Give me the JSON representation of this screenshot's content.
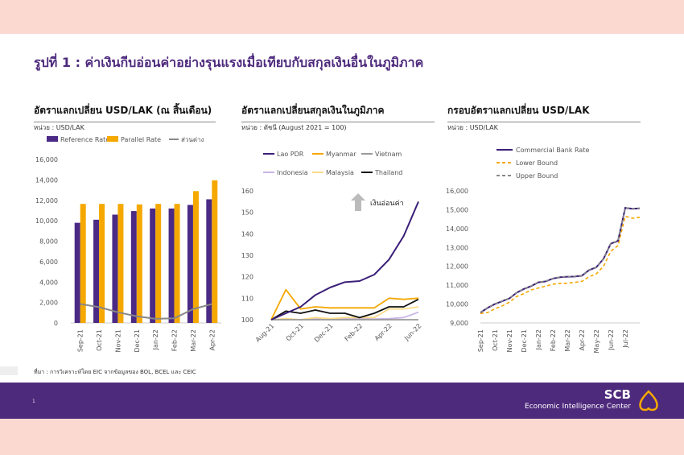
{
  "page": {
    "title": "รูปที่ 1 : ค่าเงินกีบอ่อนค่าอย่างรุนแรงเมื่อเทียบกับสกุลเงินอื่นในภูมิภาค",
    "source": "ที่มา : การวิเคราะห์โดย EIC จากข้อมูลของ BOL, BCEL และ CEIC",
    "page_number": "1",
    "brand": "SCB",
    "brand_sub": "Economic Intelligence Center",
    "annotation": "เงินอ่อนค่า"
  },
  "chart_data": [
    {
      "type": "bar",
      "title": "อัตราแลกเปลี่ยน USD/LAK (ณ สิ้นเดือน)",
      "unit": "หน่วย : USD/LAK",
      "categories": [
        "Sep-21",
        "Oct-21",
        "Nov-21",
        "Dec-21",
        "Jan-22",
        "Feb-22",
        "Mar-22",
        "Apr-22"
      ],
      "ylim": [
        0,
        16000
      ],
      "yticks": [
        "0",
        "2,000",
        "4,000",
        "6,000",
        "8,000",
        "10,000",
        "12,000",
        "14,000",
        "16,000"
      ],
      "legend": "top",
      "series": [
        {
          "name": "Reference Rate",
          "type": "bar",
          "color": "#4b2a85",
          "values": [
            9800,
            10100,
            10600,
            10950,
            11200,
            11200,
            11550,
            12100
          ]
        },
        {
          "name": "Parallel Rate",
          "type": "bar",
          "color": "#f5a800",
          "values": [
            11650,
            11650,
            11650,
            11600,
            11650,
            11650,
            12900,
            13950
          ]
        },
        {
          "name": "ส่วนต่าง",
          "type": "line",
          "color": "#888888",
          "values": [
            1850,
            1550,
            1050,
            650,
            400,
            450,
            1350,
            1850
          ]
        }
      ]
    },
    {
      "type": "line",
      "title": "อัตราแลกเปลี่ยนสกุลเงินในภูมิภาค",
      "unit": "หน่วย : ดัชนี (August 2021 = 100)",
      "x": [
        "Aug-21",
        "Sep-21",
        "Oct-21",
        "Nov-21",
        "Dec-21",
        "Jan-22",
        "Feb-22",
        "Mar-22",
        "Apr-22",
        "May-22",
        "Jun-22"
      ],
      "xticks": [
        "Aug-21",
        "Oct-21",
        "Dec-21",
        "Feb-22",
        "Apr-22",
        "Jun-22"
      ],
      "ylim": [
        100,
        160
      ],
      "yticks": [
        "100",
        "110",
        "120",
        "130",
        "140",
        "150",
        "160"
      ],
      "legend": "top",
      "series": [
        {
          "name": "Lao PDR",
          "color": "#3b1f78",
          "values": [
            100,
            103,
            106,
            111.5,
            115,
            117.5,
            118,
            121,
            128,
            139,
            155
          ]
        },
        {
          "name": "Myanmar",
          "color": "#f5a800",
          "values": [
            100,
            114,
            105,
            106,
            105.5,
            105.5,
            105.5,
            105.5,
            110,
            109.5,
            110
          ]
        },
        {
          "name": "Vietnam",
          "color": "#999999",
          "values": [
            100,
            100,
            100,
            100,
            100,
            100,
            100,
            100,
            100,
            100,
            100
          ]
        },
        {
          "name": "Indonesia",
          "color": "#c9b6e4",
          "values": [
            100,
            100.3,
            100,
            100.5,
            100.3,
            100.5,
            100.5,
            100.3,
            100.5,
            101,
            103.5
          ]
        },
        {
          "name": "Malaysia",
          "color": "#fbdc8a",
          "values": [
            100,
            100.5,
            100,
            101,
            100.5,
            101,
            101,
            101,
            105,
            105,
            106
          ]
        },
        {
          "name": "Thailand",
          "color": "#111111",
          "values": [
            100,
            104,
            103,
            104.5,
            103,
            103,
            101,
            103,
            106,
            106,
            109.5
          ]
        }
      ]
    },
    {
      "type": "line",
      "title": "กรอบอัตราแลกเปลี่ยน USD/LAK",
      "unit": "หน่วย : USD/LAK",
      "xticks": [
        "Sep-21",
        "Oct-21",
        "Nov-21",
        "Dec-21",
        "Jan-22",
        "Feb-22",
        "Mar-22",
        "Apr-22",
        "May-22",
        "Jun-22",
        "Jul-22"
      ],
      "ylim": [
        9000,
        16000
      ],
      "yticks": [
        "9,000",
        "10,000",
        "11,000",
        "12,000",
        "13,000",
        "14,000",
        "15,000",
        "16,000"
      ],
      "legend": "top",
      "series": [
        {
          "name": "Commercial Bank Rate",
          "color": "#3b1f78",
          "dash": false,
          "values": [
            9550,
            9800,
            10000,
            10150,
            10300,
            10600,
            10800,
            10950,
            11150,
            11200,
            11350,
            11420,
            11450,
            11460,
            11500,
            11800,
            11950,
            12400,
            13200,
            13350,
            15100,
            15050,
            15070
          ]
        },
        {
          "name": "Lower Bound",
          "color": "#f5a800",
          "dash": true,
          "values": [
            9500,
            9550,
            9750,
            9900,
            10100,
            10400,
            10550,
            10750,
            10850,
            10950,
            11050,
            11100,
            11100,
            11150,
            11200,
            11450,
            11600,
            12000,
            12800,
            13100,
            14650,
            14550,
            14600
          ]
        },
        {
          "name": "Upper Bound",
          "color": "#888888",
          "dash": true,
          "values": [
            9560,
            9810,
            10010,
            10160,
            10310,
            10610,
            10810,
            10960,
            11160,
            11210,
            11360,
            11430,
            11460,
            11470,
            11510,
            11810,
            11960,
            12410,
            13210,
            13360,
            15110,
            15060,
            15080
          ]
        }
      ]
    }
  ]
}
